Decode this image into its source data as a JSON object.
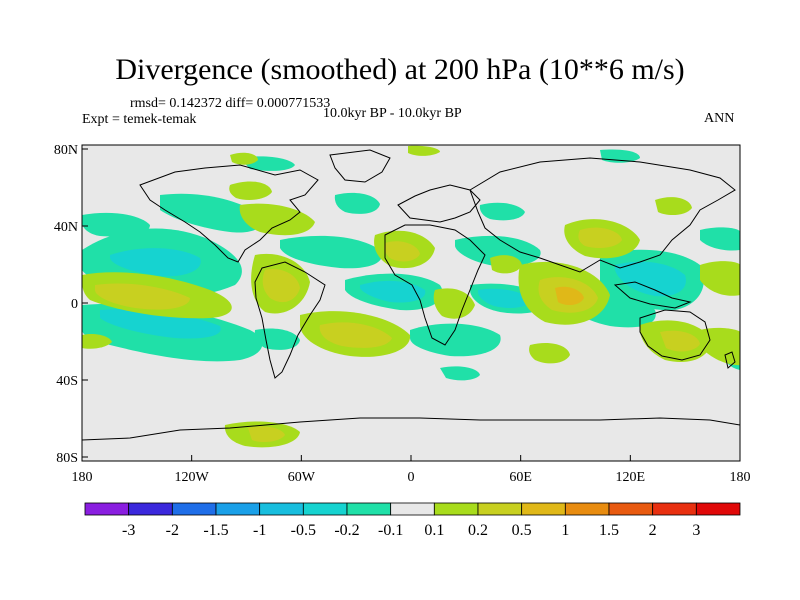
{
  "title": "Divergence (smoothed) at 200 hPa (10**6 m/s)",
  "stats": "rmsd= 0.142372 diff= 0.000771533",
  "experiment": "Expt = temek-temak",
  "period": "10.0kyr BP - 10.0kyr BP",
  "season": "ANN",
  "axes": {
    "x_labels": [
      "180",
      "120W",
      "60W",
      "0",
      "60E",
      "120E",
      "180"
    ],
    "y_labels": [
      "80N",
      "40N",
      "0",
      "40S",
      "80S"
    ]
  },
  "colorbar": {
    "labels": [
      "-3",
      "-2",
      "-1.5",
      "-1",
      "-0.5",
      "-0.2",
      "-0.1",
      "0.1",
      "0.2",
      "0.5",
      "1",
      "1.5",
      "2",
      "3"
    ],
    "colors": [
      "#8a1ee0",
      "#3b28dc",
      "#1f6ee8",
      "#1aa0e8",
      "#18bede",
      "#16d3d0",
      "#20e0a8",
      "#e8e8e8",
      "#a8dc1c",
      "#c8d020",
      "#e0b818",
      "#e88c10",
      "#e85a10",
      "#e83010",
      "#e00808"
    ]
  },
  "colors": {
    "land_bg": "#e8e8e8",
    "pos_light": "#a8dc1c",
    "pos_mid": "#c8d020",
    "pos_strong": "#e0b818",
    "neg_light": "#20e0a8",
    "neg_mid": "#16d3d0",
    "neg_strong": "#18bede"
  }
}
